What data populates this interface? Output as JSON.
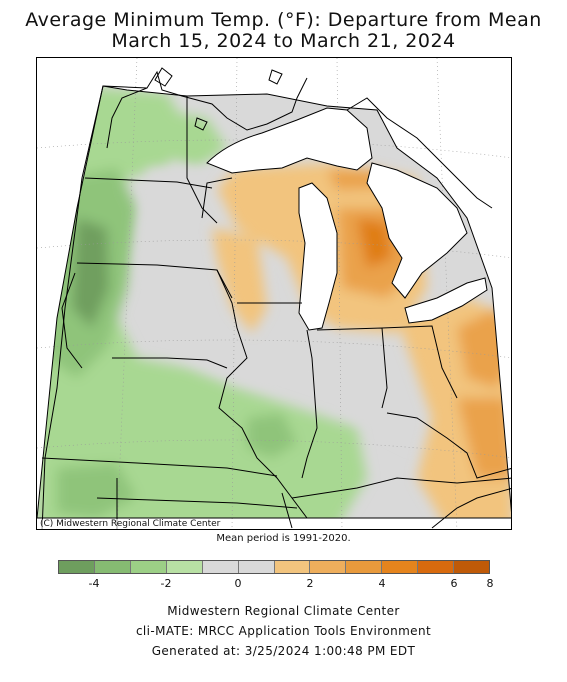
{
  "title_line1": "Average Minimum Temp. (°F): Departure from Mean",
  "title_line2": "March 15, 2024 to March 21, 2024",
  "copyright": "(C) Midwestern Regional Climate Center",
  "mean_period": "Mean period is 1991-2020.",
  "legend": {
    "colors": [
      "#6e9e5e",
      "#86bb72",
      "#9ccf86",
      "#b8e0a4",
      "#d9d9d9",
      "#d9d9d9",
      "#f2c47e",
      "#eeae5c",
      "#e89a3c",
      "#e5841d",
      "#d86a0e",
      "#bf5a08"
    ],
    "tick_labels": [
      "-4",
      "-2",
      "0",
      "2",
      "4",
      "6",
      "8"
    ]
  },
  "map_colors": {
    "neutral": "#d9d9d9",
    "green_light": "#a8d892",
    "green_mid": "#8fc47a",
    "green_dark": "#6f9f5f",
    "orange_light": "#f2c47e",
    "orange_mid": "#eaa24c",
    "orange_dark": "#e07e12",
    "water": "#ffffff"
  },
  "credits": {
    "line1": "Midwestern Regional Climate Center",
    "line2": "cli-MATE: MRCC Application Tools Environment",
    "line3": "Generated at: 3/25/2024 1:00:48 PM EDT"
  }
}
